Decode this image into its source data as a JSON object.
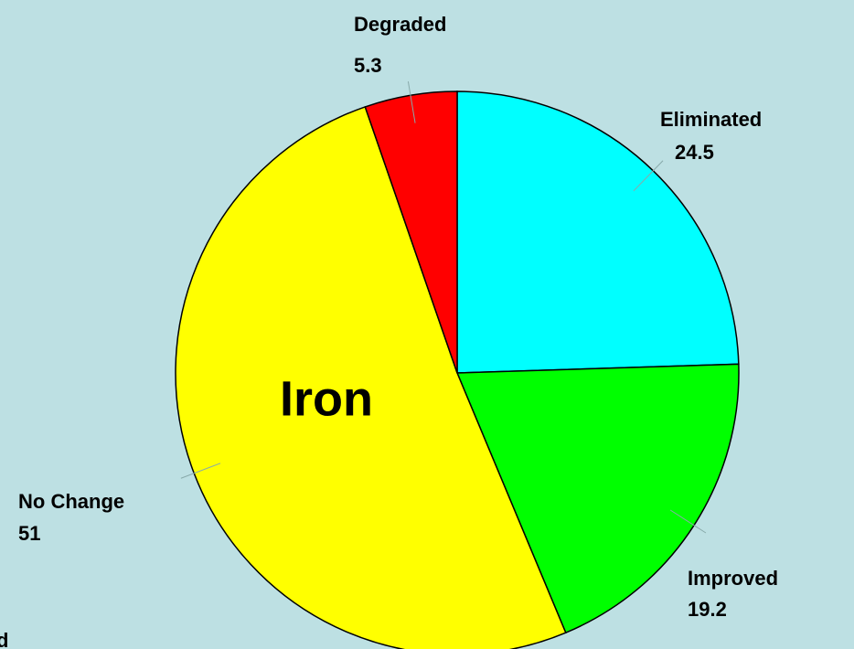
{
  "chart_data": {
    "type": "pie",
    "title": "Iron",
    "categories": [
      "Eliminated",
      "Improved",
      "No Change",
      "Degraded"
    ],
    "values": [
      24.5,
      19.2,
      51,
      5.3
    ],
    "colors": [
      "#00ffff",
      "#00ff00",
      "#ffff00",
      "#ff0000"
    ],
    "annotations": [
      "d"
    ]
  }
}
